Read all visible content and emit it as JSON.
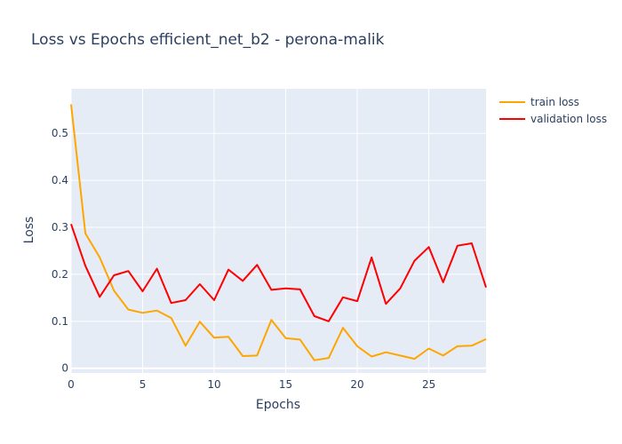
{
  "chart_data": {
    "type": "line",
    "title": "Loss vs Epochs efficient_net_b2 - perona-malik",
    "xlabel": "Epochs",
    "ylabel": "Loss",
    "xlim": [
      0,
      29
    ],
    "ylim": [
      -0.01,
      0.595
    ],
    "xticks": [
      0,
      5,
      10,
      15,
      20,
      25
    ],
    "yticks": [
      0,
      0.1,
      0.2,
      0.3,
      0.4,
      0.5
    ],
    "ytick_labels": [
      "0",
      "0.1",
      "0.2",
      "0.3",
      "0.4",
      "0.5"
    ],
    "x": [
      0,
      1,
      2,
      3,
      4,
      5,
      6,
      7,
      8,
      9,
      10,
      11,
      12,
      13,
      14,
      15,
      16,
      17,
      18,
      19,
      20,
      21,
      22,
      23,
      24,
      25,
      26,
      27,
      28,
      29
    ],
    "grid": true,
    "legend_position": "top-right",
    "series": [
      {
        "name": "train loss",
        "color": "#FFA500",
        "values": [
          0.562,
          0.287,
          0.236,
          0.165,
          0.125,
          0.118,
          0.123,
          0.107,
          0.048,
          0.099,
          0.065,
          0.067,
          0.026,
          0.027,
          0.103,
          0.064,
          0.061,
          0.017,
          0.022,
          0.086,
          0.047,
          0.025,
          0.034,
          0.027,
          0.02,
          0.042,
          0.027,
          0.047,
          0.048,
          0.062
        ]
      },
      {
        "name": "validation loss",
        "color": "#FF0000",
        "values": [
          0.307,
          0.218,
          0.152,
          0.198,
          0.207,
          0.164,
          0.212,
          0.139,
          0.145,
          0.179,
          0.145,
          0.21,
          0.186,
          0.22,
          0.167,
          0.17,
          0.168,
          0.111,
          0.1,
          0.151,
          0.143,
          0.236,
          0.137,
          0.17,
          0.229,
          0.258,
          0.183,
          0.261,
          0.266,
          0.172
        ]
      }
    ]
  }
}
